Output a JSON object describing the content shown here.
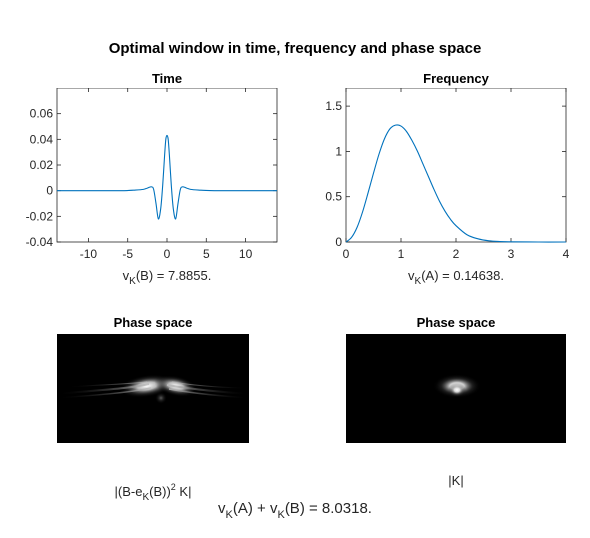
{
  "figure": {
    "title": "Optimal window in time, frequency and phase space"
  },
  "chart_data": [
    {
      "type": "line",
      "title": "Time",
      "xlim": [
        -14,
        14
      ],
      "ylim": [
        -0.04,
        0.08
      ],
      "xticks": [
        -10,
        -5,
        0,
        5,
        10
      ],
      "xtick_labels": [
        "-10",
        "-5",
        "0",
        "5",
        "10"
      ],
      "yticks": [
        -0.04,
        -0.02,
        0,
        0.02,
        0.04,
        0.06
      ],
      "ytick_labels": [
        "-0.04",
        "-0.02",
        "0",
        "0.02",
        "0.04",
        "0.06"
      ],
      "series_color": "#0072BD",
      "x": [
        -14,
        -6,
        -4,
        -3,
        -2.5,
        -2,
        -1.7,
        -1.4,
        -1.1,
        -0.8,
        -0.55,
        -0.3,
        -0.15,
        0,
        0.15,
        0.3,
        0.55,
        0.8,
        1.1,
        1.4,
        1.7,
        2,
        2.5,
        3,
        4,
        6,
        14
      ],
      "y": [
        0,
        0,
        0.0005,
        0.001,
        0.002,
        0.003,
        0.001,
        -0.01,
        -0.022,
        -0.014,
        0.004,
        0.028,
        0.04,
        0.043,
        0.04,
        0.028,
        0.004,
        -0.014,
        -0.022,
        -0.01,
        0.001,
        0.003,
        0.002,
        0.001,
        0.0005,
        0,
        0
      ],
      "caption_prefix": "v",
      "caption_sub": "K",
      "caption_suffix": "(B) = 7.8855."
    },
    {
      "type": "line",
      "title": "Frequency",
      "xlim": [
        0,
        4
      ],
      "ylim": [
        0,
        1.7
      ],
      "xticks": [
        0,
        1,
        2,
        3,
        4
      ],
      "xtick_labels": [
        "0",
        "1",
        "2",
        "3",
        "4"
      ],
      "yticks": [
        0,
        0.5,
        1,
        1.5
      ],
      "ytick_labels": [
        "0",
        "0.5",
        "1",
        "1.5"
      ],
      "series_color": "#0072BD",
      "x": [
        0,
        0.1,
        0.2,
        0.3,
        0.4,
        0.5,
        0.6,
        0.7,
        0.8,
        0.9,
        1.0,
        1.1,
        1.2,
        1.3,
        1.4,
        1.5,
        1.6,
        1.7,
        1.8,
        1.9,
        2.0,
        2.2,
        2.4,
        2.6,
        2.8,
        3.0,
        3.5,
        4.0
      ],
      "y": [
        0,
        0.05,
        0.16,
        0.33,
        0.54,
        0.76,
        0.97,
        1.14,
        1.25,
        1.29,
        1.28,
        1.22,
        1.12,
        1.0,
        0.86,
        0.72,
        0.58,
        0.45,
        0.34,
        0.25,
        0.18,
        0.08,
        0.035,
        0.013,
        0.005,
        0.002,
        0.0,
        0.0
      ],
      "caption_prefix": "v",
      "caption_sub": "K",
      "caption_suffix": "(A) = 0.14638."
    }
  ],
  "phase_panels": [
    {
      "title": "Phase space",
      "caption": "|(B-e_K(B))^2 K|",
      "caption_pre": "|(B-e",
      "caption_sub": "K",
      "caption_mid": "(B))",
      "caption_sup": "2",
      "caption_post": " K|"
    },
    {
      "title": "Phase space",
      "caption": "|K|"
    }
  ],
  "bottom": {
    "v1": "v",
    "sub1": "K",
    "mid": "(A) + v",
    "sub2": "K",
    "tail": "(B) = 8.0318."
  }
}
